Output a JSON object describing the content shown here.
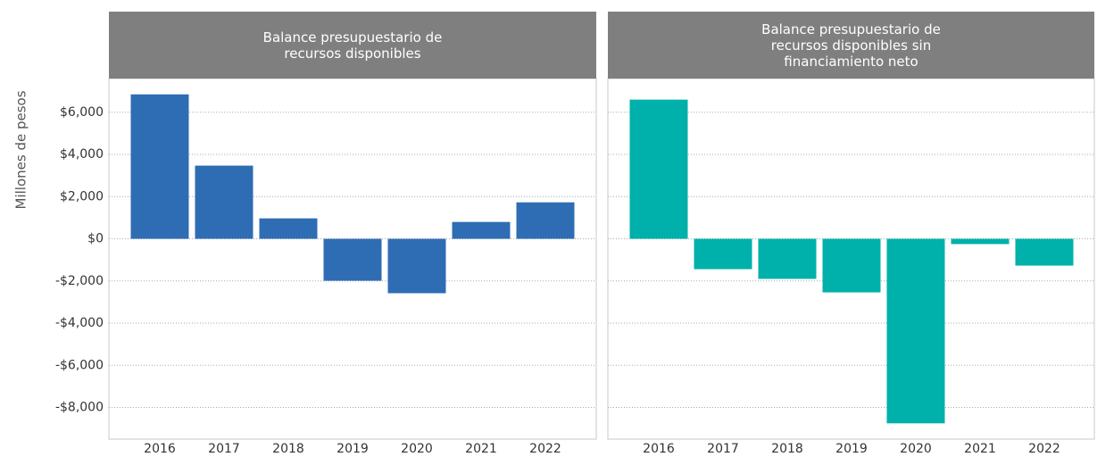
{
  "chart_data": [
    {
      "type": "bar",
      "title": "Balance presupuestario de recursos disponibles",
      "y_label": "Millones de pesos",
      "categories": [
        "2016",
        "2017",
        "2018",
        "2019",
        "2020",
        "2021",
        "2022"
      ],
      "values": [
        6850,
        3470,
        970,
        -1990,
        -2580,
        800,
        1730
      ],
      "color": "#2e6db4",
      "ylim": [
        -9500,
        7600
      ],
      "yticks": [
        {
          "value": 6000,
          "label": "$6,000"
        },
        {
          "value": 4000,
          "label": "$4,000"
        },
        {
          "value": 2000,
          "label": "$2,000"
        },
        {
          "value": 0,
          "label": "$0"
        },
        {
          "value": -2000,
          "label": "-$2,000"
        },
        {
          "value": -4000,
          "label": "-$4,000"
        },
        {
          "value": -6000,
          "label": "-$6,000"
        },
        {
          "value": -8000,
          "label": "-$8,000"
        }
      ],
      "grid": true
    },
    {
      "type": "bar",
      "title": "Balance presupuestario de recursos disponibles sin financiamiento neto",
      "categories": [
        "2016",
        "2017",
        "2018",
        "2019",
        "2020",
        "2021",
        "2022"
      ],
      "values": [
        6600,
        -1440,
        -1900,
        -2540,
        -8750,
        -250,
        -1270
      ],
      "color": "#00b0aa",
      "ylim": [
        -9500,
        7600
      ],
      "grid": true
    }
  ]
}
